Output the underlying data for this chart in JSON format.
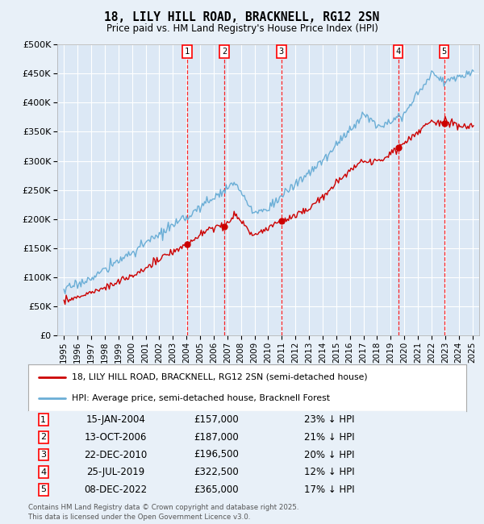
{
  "title": "18, LILY HILL ROAD, BRACKNELL, RG12 2SN",
  "subtitle": "Price paid vs. HM Land Registry's House Price Index (HPI)",
  "legend_line1": "18, LILY HILL ROAD, BRACKNELL, RG12 2SN (semi-detached house)",
  "legend_line2": "HPI: Average price, semi-detached house, Bracknell Forest",
  "footer1": "Contains HM Land Registry data © Crown copyright and database right 2025.",
  "footer2": "This data is licensed under the Open Government Licence v3.0.",
  "sale_dates_year": [
    2004.04,
    2006.79,
    2010.98,
    2019.56,
    2022.93
  ],
  "sale_prices": [
    157000,
    187000,
    196500,
    322500,
    365000
  ],
  "sale_labels": [
    "1",
    "2",
    "3",
    "4",
    "5"
  ],
  "sale_info": [
    [
      "1",
      "15-JAN-2004",
      "£157,000",
      "23% ↓ HPI"
    ],
    [
      "2",
      "13-OCT-2006",
      "£187,000",
      "21% ↓ HPI"
    ],
    [
      "3",
      "22-DEC-2010",
      "£196,500",
      "20% ↓ HPI"
    ],
    [
      "4",
      "25-JUL-2019",
      "£322,500",
      "12% ↓ HPI"
    ],
    [
      "5",
      "08-DEC-2022",
      "£365,000",
      "17% ↓ HPI"
    ]
  ],
  "hpi_color": "#6baed6",
  "sale_color": "#cc0000",
  "background_color": "#e8f0f8",
  "plot_bg_color": "#dce8f5",
  "grid_color": "#ffffff",
  "ylim": [
    0,
    500000
  ],
  "yticks": [
    0,
    50000,
    100000,
    150000,
    200000,
    250000,
    300000,
    350000,
    400000,
    450000,
    500000
  ],
  "ytick_labels": [
    "£0",
    "£50K",
    "£100K",
    "£150K",
    "£200K",
    "£250K",
    "£300K",
    "£350K",
    "£400K",
    "£450K",
    "£500K"
  ],
  "xlim_start": 1994.5,
  "xlim_end": 2025.5,
  "xtick_years": [
    1995,
    1996,
    1997,
    1998,
    1999,
    2000,
    2001,
    2002,
    2003,
    2004,
    2005,
    2006,
    2007,
    2008,
    2009,
    2010,
    2011,
    2012,
    2013,
    2014,
    2015,
    2016,
    2017,
    2018,
    2019,
    2020,
    2021,
    2022,
    2023,
    2024,
    2025
  ]
}
